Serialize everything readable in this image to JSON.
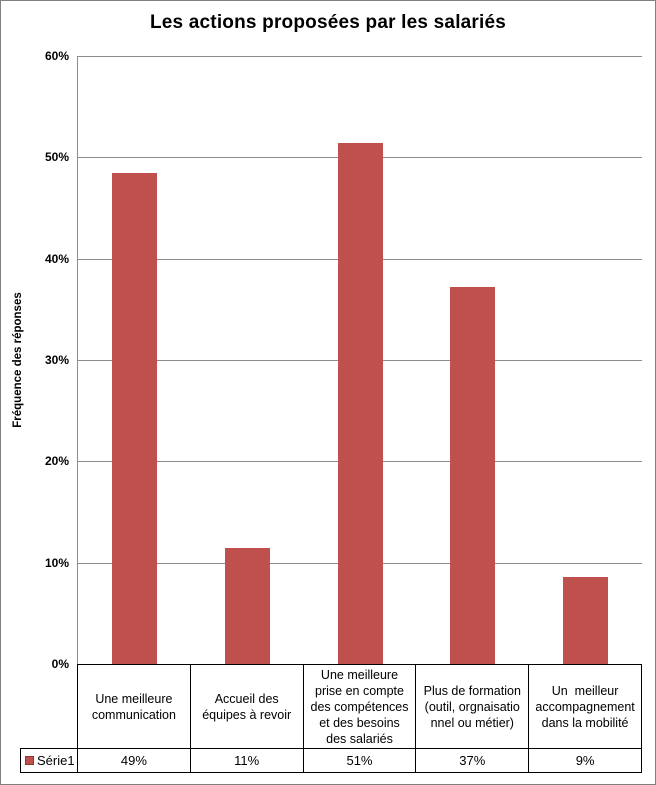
{
  "chart_data": {
    "type": "bar",
    "title": "Les actions proposées par les salariés",
    "ylabel": "Fréquence des réponses",
    "categories": [
      "Une meilleure\ncommunication",
      "Accueil des\néquipes à revoir",
      "Une meilleure\nprise en compte\ndes compétences\net des besoins\ndes salariés",
      "Plus de formation\n(outil, orgnaisatio\nnnel ou métier)",
      "Un  meilleur\naccompagnement\ndans la mobilité"
    ],
    "series": [
      {
        "name": "Série1",
        "values": [
          48.5,
          11.4,
          51.4,
          37.2,
          8.6
        ],
        "value_labels": [
          "49%",
          "11%",
          "51%",
          "37%",
          "9%"
        ]
      }
    ],
    "ylim": [
      0,
      60
    ],
    "ytick_step": 10,
    "yticks": [
      "0%",
      "10%",
      "20%",
      "30%",
      "40%",
      "50%",
      "60%"
    ],
    "grid": true,
    "legend_position": "data-table",
    "colors": {
      "bar": "#C0504D",
      "bar_legend_border": "#8C3836",
      "gridline": "#8C8C8C",
      "axis": "#8C8C8C",
      "table_border": "#000000",
      "chart_border": "#808080",
      "text": "#000000",
      "background": "#FFFFFF"
    }
  }
}
